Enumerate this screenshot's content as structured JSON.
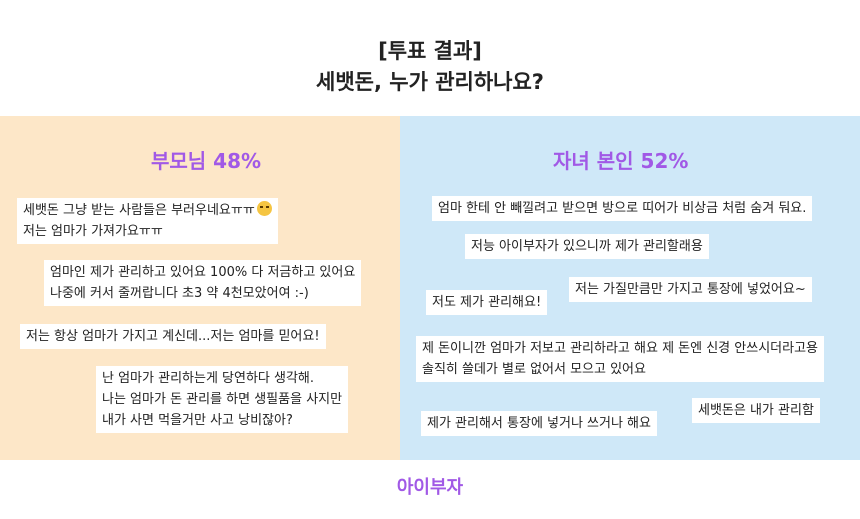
{
  "title": {
    "line1": "[투표 결과]",
    "line2": "세뱃돈, 누가 관리하나요?"
  },
  "left": {
    "heading": "부모님 48%",
    "notes": [
      {
        "lines": [
          "세뱃돈 그냥 받는 사람들은 부러우네요ㅠㅠ",
          "저는 엄마가 가져가요ㅠㅠ"
        ],
        "emoji": "crying-face"
      },
      {
        "lines": [
          "엄마인 제가 관리하고 있어요  100% 다 저금하고 있어요",
          "나중에 커서 줄꺼랍니다  초3 약 4천모았어여 :-)"
        ]
      },
      {
        "lines": [
          "저는 항상 엄마가 가지고 계신데...저는 엄마를 믿어요!"
        ]
      },
      {
        "lines": [
          "난 엄마가 관리하는게 당연하다 생각해.",
          "나는 엄마가 돈 관리를 하면 생필품을 사지만",
          "내가 사면 먹을거만 사고 낭비잖아?"
        ]
      }
    ]
  },
  "right": {
    "heading": "자녀 본인 52%",
    "notes": [
      {
        "lines": [
          "엄마 한테 안 빼낄려고 받으면 방으로 띠어가 비상금 처럼 숨겨 둬요."
        ]
      },
      {
        "lines": [
          "저능 아이부자가 있으니까 제가 관리할래용"
        ]
      },
      {
        "lines": [
          "저는 가질만큼만 가지고 통장에 넣었어요~"
        ]
      },
      {
        "lines": [
          "저도 제가 관리해요!"
        ]
      },
      {
        "lines": [
          "제 돈이니깐 엄마가 저보고 관리하라고 해요 제 돈엔 신경 안쓰시더라고용",
          "솔직히 쓸데가 별로 없어서 모으고 있어요"
        ]
      },
      {
        "lines": [
          "세뱃돈은 내가 관리함"
        ]
      },
      {
        "lines": [
          "제가 관리해서 통장에 넣거나 쓰거나 해요"
        ]
      }
    ]
  },
  "brand": "아이부자",
  "colors": {
    "accent": "#a159e6",
    "left_bg": "#fde7c8",
    "right_bg": "#cfe8f8"
  }
}
